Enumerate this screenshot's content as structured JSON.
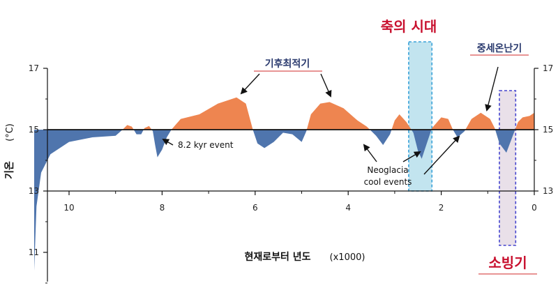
{
  "chart_data": {
    "type": "area",
    "title": "",
    "xlabel": "현재로부터 년도",
    "xlabel_unit": "(x1000)",
    "ylabel": "기온",
    "ylabel_unit": "(°C)",
    "x_reversed": true,
    "xlim": [
      0,
      10.5
    ],
    "ylim": [
      10,
      17
    ],
    "baseline": 15,
    "x_ticks": [
      "10",
      "8",
      "6",
      "4",
      "2",
      "0"
    ],
    "y_ticks_left": [
      "17",
      "15",
      "13",
      "11"
    ],
    "y_ticks_right": [
      "17",
      "15",
      "13"
    ],
    "colors": {
      "warm": "#ee8550",
      "cool": "#4f75ad",
      "axis": "#111111",
      "axial_band": "#bfe3ef",
      "axial_border": "#2c9bd6",
      "lia_band": "#e8dfe8",
      "lia_border": "#3b3bcc"
    },
    "series": [
      {
        "values": [
          [
            10.75,
            10.4
          ],
          [
            10.7,
            12.5
          ],
          [
            10.6,
            13.6
          ],
          [
            10.4,
            14.2
          ],
          [
            10.0,
            14.6
          ],
          [
            9.5,
            14.75
          ],
          [
            9.0,
            14.8
          ],
          [
            8.85,
            15.0
          ],
          [
            8.75,
            15.15
          ],
          [
            8.65,
            15.1
          ],
          [
            8.55,
            14.85
          ],
          [
            8.45,
            14.85
          ],
          [
            8.38,
            15.05
          ],
          [
            8.28,
            15.12
          ],
          [
            8.2,
            14.95
          ],
          [
            8.15,
            14.5
          ],
          [
            8.1,
            14.1
          ],
          [
            8.0,
            14.35
          ],
          [
            7.9,
            14.75
          ],
          [
            7.8,
            15.0
          ],
          [
            7.6,
            15.35
          ],
          [
            7.2,
            15.5
          ],
          [
            6.8,
            15.85
          ],
          [
            6.4,
            16.05
          ],
          [
            6.2,
            15.85
          ],
          [
            6.05,
            15.0
          ],
          [
            5.95,
            14.55
          ],
          [
            5.8,
            14.4
          ],
          [
            5.6,
            14.6
          ],
          [
            5.4,
            14.9
          ],
          [
            5.2,
            14.85
          ],
          [
            5.0,
            14.6
          ],
          [
            4.9,
            14.95
          ],
          [
            4.8,
            15.5
          ],
          [
            4.6,
            15.85
          ],
          [
            4.4,
            15.9
          ],
          [
            4.1,
            15.7
          ],
          [
            3.8,
            15.3
          ],
          [
            3.6,
            15.1
          ],
          [
            3.4,
            14.8
          ],
          [
            3.25,
            14.5
          ],
          [
            3.1,
            14.85
          ],
          [
            3.0,
            15.3
          ],
          [
            2.9,
            15.5
          ],
          [
            2.75,
            15.25
          ],
          [
            2.6,
            14.9
          ],
          [
            2.5,
            14.3
          ],
          [
            2.42,
            14.05
          ],
          [
            2.3,
            14.6
          ],
          [
            2.2,
            15.05
          ],
          [
            2.0,
            15.4
          ],
          [
            1.85,
            15.35
          ],
          [
            1.75,
            15.0
          ],
          [
            1.65,
            14.75
          ],
          [
            1.5,
            14.95
          ],
          [
            1.35,
            15.35
          ],
          [
            1.15,
            15.55
          ],
          [
            0.95,
            15.35
          ],
          [
            0.85,
            15.05
          ],
          [
            0.75,
            14.55
          ],
          [
            0.6,
            14.25
          ],
          [
            0.45,
            14.85
          ],
          [
            0.35,
            15.25
          ],
          [
            0.25,
            15.4
          ],
          [
            0.1,
            15.45
          ],
          [
            0.0,
            15.55
          ]
        ]
      }
    ],
    "annotations": [
      {
        "text": "기후최적기",
        "style": "warm-label"
      },
      {
        "text": "8.2 kyr event",
        "style": "event-label"
      },
      {
        "text": "Neoglacia",
        "style": "event-label"
      },
      {
        "text": "cool events",
        "style": "event-label"
      },
      {
        "text": "중세온난기",
        "style": "warm-label"
      },
      {
        "text": "축의 시대",
        "style": "red-title"
      },
      {
        "text": "소빙기",
        "style": "red-title"
      }
    ],
    "highlight_bands": [
      {
        "x_range": [
          2.2,
          2.7
        ],
        "style": "axial"
      },
      {
        "x_range": [
          0.4,
          0.75
        ],
        "style": "lia"
      }
    ],
    "grid": false,
    "legend": "none"
  }
}
